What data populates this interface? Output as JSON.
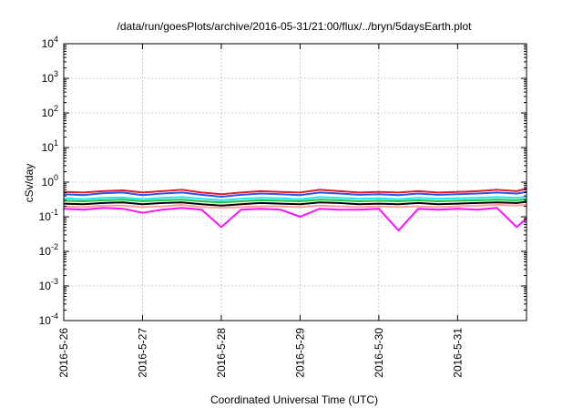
{
  "chart_data": {
    "type": "line",
    "title": "/data/run/goesPlots/archive/2016-05-31/21:00/flux/../bryn/5daysEarth.plot",
    "xlabel": "Coordinated Universal Time (UTC)",
    "ylabel": "cSv/day",
    "y_scale": "log",
    "ylim": [
      0.0001,
      10000
    ],
    "y_ticks": [
      {
        "value": 0.0001,
        "base": "10",
        "exp": "-4"
      },
      {
        "value": 0.001,
        "base": "10",
        "exp": "-3"
      },
      {
        "value": 0.01,
        "base": "10",
        "exp": "-2"
      },
      {
        "value": 0.1,
        "base": "10",
        "exp": "-1"
      },
      {
        "value": 1,
        "base": "10",
        "exp": "0"
      },
      {
        "value": 10,
        "base": "10",
        "exp": "1"
      },
      {
        "value": 100,
        "base": "10",
        "exp": "2"
      },
      {
        "value": 1000,
        "base": "10",
        "exp": "3"
      },
      {
        "value": 10000,
        "base": "10",
        "exp": "4"
      }
    ],
    "xlim": [
      "2016-05-26 00:00",
      "2016-05-31 21:00"
    ],
    "x_ticks": [
      "2016-5-26",
      "2016-5-27",
      "2016-5-28",
      "2016-5-29",
      "2016-5-30",
      "2016-5-31"
    ],
    "grid": true,
    "x": [
      "2016-05-26 00:00",
      "2016-05-26 06:00",
      "2016-05-26 12:00",
      "2016-05-26 18:00",
      "2016-05-27 00:00",
      "2016-05-27 06:00",
      "2016-05-27 12:00",
      "2016-05-27 18:00",
      "2016-05-28 00:00",
      "2016-05-28 06:00",
      "2016-05-28 12:00",
      "2016-05-28 18:00",
      "2016-05-29 00:00",
      "2016-05-29 06:00",
      "2016-05-29 12:00",
      "2016-05-29 18:00",
      "2016-05-30 00:00",
      "2016-05-30 06:00",
      "2016-05-30 12:00",
      "2016-05-30 18:00",
      "2016-05-31 00:00",
      "2016-05-31 06:00",
      "2016-05-31 12:00",
      "2016-05-31 18:00",
      "2016-05-31 21:00"
    ],
    "series": [
      {
        "color": "#e0202a",
        "values": [
          0.52,
          0.5,
          0.55,
          0.58,
          0.5,
          0.55,
          0.6,
          0.5,
          0.45,
          0.5,
          0.55,
          0.52,
          0.5,
          0.6,
          0.55,
          0.5,
          0.52,
          0.5,
          0.55,
          0.5,
          0.52,
          0.55,
          0.6,
          0.55,
          0.65
        ]
      },
      {
        "color": "#3050f0",
        "values": [
          0.45,
          0.42,
          0.48,
          0.5,
          0.42,
          0.47,
          0.5,
          0.43,
          0.38,
          0.43,
          0.47,
          0.45,
          0.42,
          0.5,
          0.47,
          0.43,
          0.45,
          0.42,
          0.47,
          0.43,
          0.45,
          0.47,
          0.5,
          0.47,
          0.52
        ]
      },
      {
        "color": "#20e8e8",
        "values": [
          0.34,
          0.32,
          0.35,
          0.36,
          0.32,
          0.35,
          0.37,
          0.33,
          0.3,
          0.33,
          0.35,
          0.34,
          0.32,
          0.37,
          0.35,
          0.33,
          0.34,
          0.32,
          0.35,
          0.33,
          0.34,
          0.35,
          0.37,
          0.35,
          0.38
        ]
      },
      {
        "color": "#20c040",
        "values": [
          0.29,
          0.28,
          0.3,
          0.31,
          0.28,
          0.3,
          0.31,
          0.28,
          0.26,
          0.28,
          0.3,
          0.29,
          0.28,
          0.31,
          0.3,
          0.28,
          0.29,
          0.28,
          0.3,
          0.28,
          0.29,
          0.3,
          0.31,
          0.3,
          0.32
        ]
      },
      {
        "color": "#000000",
        "values": [
          0.24,
          0.23,
          0.25,
          0.26,
          0.23,
          0.25,
          0.26,
          0.23,
          0.21,
          0.23,
          0.25,
          0.24,
          0.23,
          0.26,
          0.25,
          0.23,
          0.24,
          0.23,
          0.25,
          0.23,
          0.24,
          0.25,
          0.26,
          0.25,
          0.27
        ]
      },
      {
        "color": "#ffa0a0",
        "values": [
          0.2,
          0.19,
          0.21,
          0.21,
          0.19,
          0.2,
          0.22,
          0.19,
          0.18,
          0.19,
          0.2,
          0.2,
          0.19,
          0.21,
          0.2,
          0.19,
          0.2,
          0.19,
          0.2,
          0.19,
          0.2,
          0.21,
          0.22,
          0.21,
          0.22
        ]
      },
      {
        "color": "#ff10ff",
        "values": [
          0.17,
          0.16,
          0.18,
          0.17,
          0.13,
          0.16,
          0.18,
          0.16,
          0.05,
          0.16,
          0.17,
          0.16,
          0.1,
          0.17,
          0.16,
          0.16,
          0.17,
          0.04,
          0.17,
          0.16,
          0.17,
          0.16,
          0.18,
          0.05,
          0.09
        ]
      }
    ]
  }
}
